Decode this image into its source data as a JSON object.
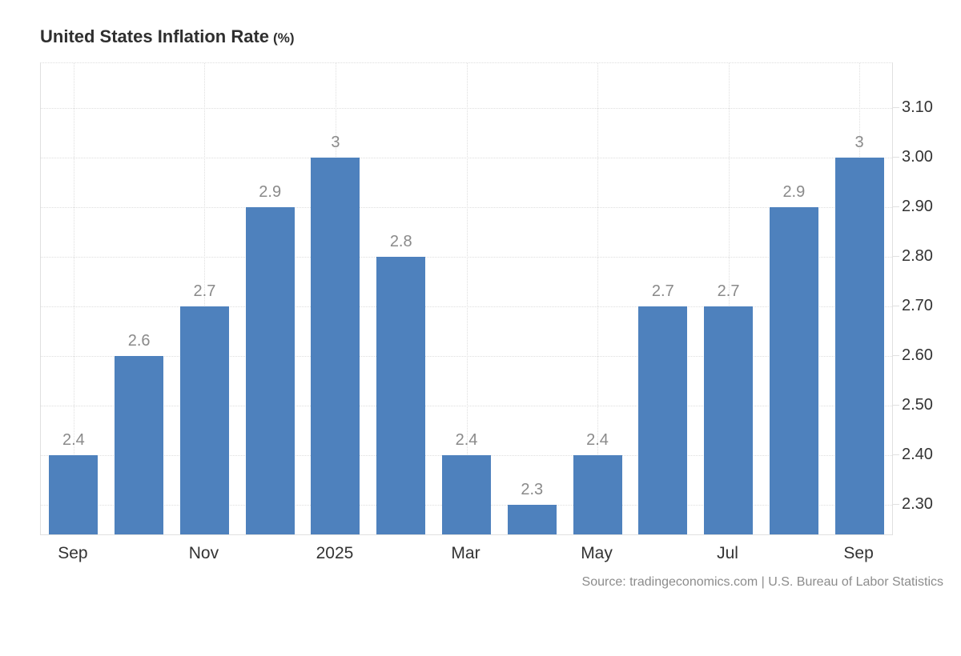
{
  "header": {
    "title": "United States Inflation Rate",
    "title_suffix": "(%)"
  },
  "source": {
    "text": "Source: tradingeconomics.com | U.S. Bureau of Labor Statistics"
  },
  "colors": {
    "bar": "#4e81bd",
    "grid": "#dedede",
    "axis_border": "#e0e0e0",
    "data_label": "#8a8a8a",
    "axis_label": "#333333",
    "title": "#2f2f2f",
    "source_text": "#8c8c8c",
    "background": "#ffffff"
  },
  "chart_data": {
    "type": "bar",
    "title": "United States Inflation Rate (%)",
    "xlabel": "",
    "ylabel": "",
    "values": [
      2.4,
      2.6,
      2.7,
      2.9,
      3,
      2.8,
      2.4,
      2.3,
      2.4,
      2.7,
      2.7,
      2.9,
      3
    ],
    "data_labels": [
      "2.4",
      "2.6",
      "2.7",
      "2.9",
      "3",
      "2.8",
      "2.4",
      "2.3",
      "2.4",
      "2.7",
      "2.7",
      "2.9",
      "3"
    ],
    "x_tick_labels": [
      "Sep",
      "Nov",
      "2025",
      "Mar",
      "May",
      "Jul",
      "Sep"
    ],
    "x_tick_slots": [
      0,
      2,
      4,
      6,
      8,
      10,
      12
    ],
    "y_ticks": [
      2.3,
      2.4,
      2.5,
      2.6,
      2.7,
      2.8,
      2.9,
      3.0,
      3.1
    ],
    "y_tick_labels": [
      "2.30",
      "2.40",
      "2.50",
      "2.60",
      "2.70",
      "2.80",
      "2.90",
      "3.00",
      "3.10"
    ],
    "ylim": [
      2.24,
      3.19
    ],
    "grid": true,
    "grid_style": "dotted",
    "legend": "none",
    "y_axis_side": "right"
  }
}
